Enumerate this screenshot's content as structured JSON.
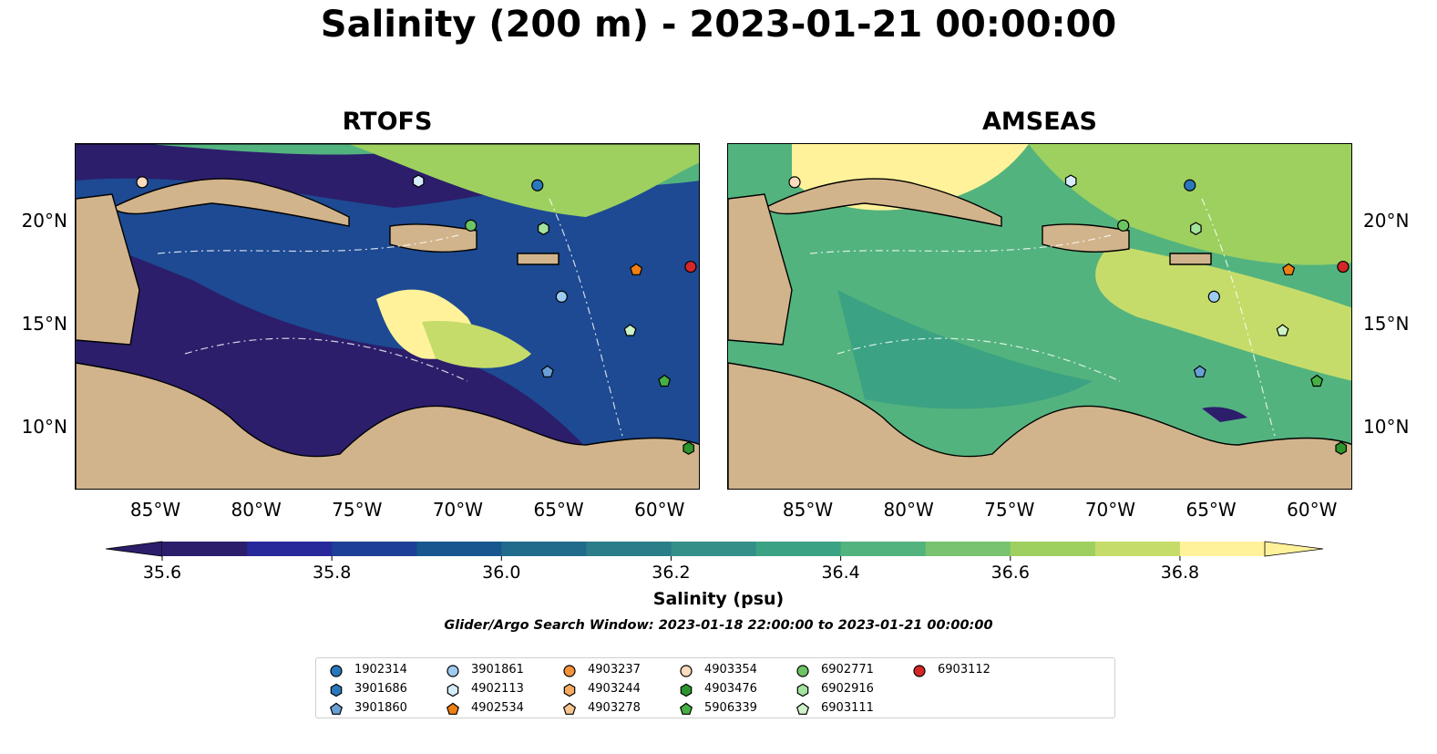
{
  "figure": {
    "title": "Salinity (200 m) - 2023-01-21 00:00:00",
    "search_window": "Glider/Argo Search Window: 2023-01-18 22:00:00 to 2023-01-21 00:00:00"
  },
  "panels": [
    {
      "title": "RTOFS"
    },
    {
      "title": "AMSEAS"
    }
  ],
  "axes": {
    "lon_ticks": [
      "85°W",
      "80°W",
      "75°W",
      "70°W",
      "65°W",
      "60°W"
    ],
    "lat_ticks": [
      "20°N",
      "15°N",
      "10°N"
    ]
  },
  "colorbar": {
    "label": "Salinity (psu)",
    "range": [
      35.6,
      36.9
    ],
    "ticks": [
      "35.6",
      "35.8",
      "36.0",
      "36.2",
      "36.4",
      "36.6",
      "36.8"
    ],
    "colors": [
      "#2c1e6b",
      "#27289a",
      "#1d3f95",
      "#17568e",
      "#206a8b",
      "#2a7d89",
      "#338f87",
      "#3ba283",
      "#53b37e",
      "#78c36f",
      "#9ed05f",
      "#c6dc6a",
      "#fff29a"
    ]
  },
  "legend": [
    {
      "id": "1902314",
      "marker": "circle",
      "color": "#2a78bc"
    },
    {
      "id": "3901686",
      "marker": "hexagon",
      "color": "#2a78bc"
    },
    {
      "id": "3901860",
      "marker": "pentagon",
      "color": "#6a9fd6"
    },
    {
      "id": "3901861",
      "marker": "circle",
      "color": "#9ecbf0"
    },
    {
      "id": "4902113",
      "marker": "hexagon",
      "color": "#d5ecfb"
    },
    {
      "id": "4902534",
      "marker": "pentagon",
      "color": "#f07f13"
    },
    {
      "id": "4903237",
      "marker": "circle",
      "color": "#f5913a"
    },
    {
      "id": "4903244",
      "marker": "hexagon",
      "color": "#f7aa5f"
    },
    {
      "id": "4903278",
      "marker": "pentagon",
      "color": "#f8c48e"
    },
    {
      "id": "4903354",
      "marker": "circle",
      "color": "#fcdcbc"
    },
    {
      "id": "4903476",
      "marker": "hexagon",
      "color": "#2c962c"
    },
    {
      "id": "5906339",
      "marker": "pentagon",
      "color": "#45b043"
    },
    {
      "id": "6902771",
      "marker": "circle",
      "color": "#6cc463"
    },
    {
      "id": "6902916",
      "marker": "hexagon",
      "color": "#a4e39d"
    },
    {
      "id": "6903111",
      "marker": "pentagon",
      "color": "#cdf2c6"
    },
    {
      "id": "6903112",
      "marker": "circle",
      "color": "#d62728"
    }
  ],
  "floats": [
    {
      "id": "4903354",
      "lon": -85.7,
      "lat": 21.95
    },
    {
      "id": "4902113",
      "lon": -72.0,
      "lat": 22.0
    },
    {
      "id": "1902314",
      "lon": -66.1,
      "lat": 21.8
    },
    {
      "id": "6902771",
      "lon": -69.4,
      "lat": 19.85
    },
    {
      "id": "6902916",
      "lon": -65.8,
      "lat": 19.7
    },
    {
      "id": "6903112",
      "lon": -58.5,
      "lat": 17.85
    },
    {
      "id": "4902534",
      "lon": -61.2,
      "lat": 17.7
    },
    {
      "id": "3901861",
      "lon": -64.9,
      "lat": 16.4
    },
    {
      "id": "6903111",
      "lon": -61.5,
      "lat": 14.75
    },
    {
      "id": "3901860",
      "lon": -65.6,
      "lat": 12.75
    },
    {
      "id": "5906339",
      "lon": -59.8,
      "lat": 12.3
    },
    {
      "id": "4903476",
      "lon": -58.6,
      "lat": 9.05
    }
  ]
}
